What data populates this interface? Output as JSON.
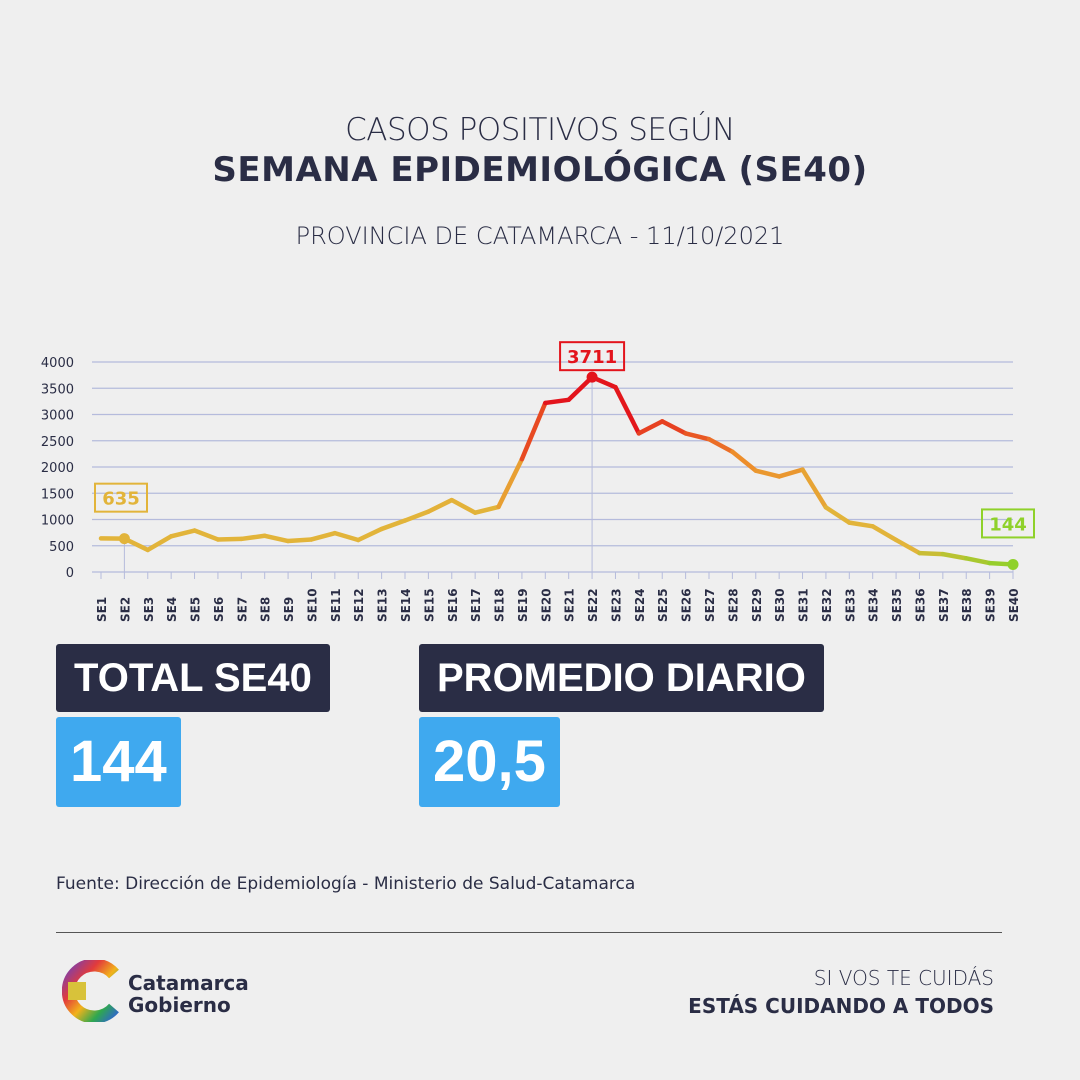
{
  "header": {
    "line1": "CASOS POSITIVOS SEGÚN",
    "line2": "SEMANA EPIDEMIOLÓGICA (SE40)",
    "subtitle": "PROVINCIA DE CATAMARCA - 11/10/2021"
  },
  "chart_data": {
    "type": "line",
    "categories": [
      "SE1",
      "SE2",
      "SE3",
      "SE4",
      "SE5",
      "SE6",
      "SE7",
      "SE8",
      "SE9",
      "SE10",
      "SE11",
      "SE12",
      "SE13",
      "SE14",
      "SE15",
      "SE16",
      "SE17",
      "SE18",
      "SE19",
      "SE20",
      "SE21",
      "SE22",
      "SE23",
      "SE24",
      "SE25",
      "SE26",
      "SE27",
      "SE28",
      "SE29",
      "SE30",
      "SE31",
      "SE32",
      "SE33",
      "SE34",
      "SE35",
      "SE36",
      "SE37",
      "SE38",
      "SE39",
      "SE40"
    ],
    "values": [
      640,
      635,
      420,
      680,
      790,
      620,
      630,
      690,
      590,
      620,
      740,
      610,
      820,
      980,
      1150,
      1370,
      1130,
      1240,
      2150,
      3220,
      3280,
      3711,
      3520,
      2640,
      2870,
      2640,
      2530,
      2290,
      1930,
      1820,
      1950,
      1230,
      940,
      870,
      610,
      360,
      340,
      260,
      170,
      144
    ],
    "yticks": [
      0,
      500,
      1000,
      1500,
      2000,
      2500,
      3000,
      3500,
      4000
    ],
    "ylim": [
      0,
      4000
    ],
    "grid": true,
    "annotations": [
      {
        "x": "SE2",
        "label": "635",
        "color": "#e2b43a"
      },
      {
        "x": "SE22",
        "label": "3711",
        "color": "#e3141c"
      },
      {
        "x": "SE40",
        "label": "144",
        "color": "#8fd12a"
      }
    ],
    "colors": {
      "low": "#e2b43a",
      "mid": "#ee8a2a",
      "high": "#e3141c",
      "end": "#8fd12a"
    }
  },
  "stats": {
    "total_label": "TOTAL SE40",
    "total_value": "144",
    "avg_label": "PROMEDIO DIARIO",
    "avg_value": "20,5"
  },
  "footer": {
    "source": "Fuente: Dirección de Epidemiología - Ministerio de Salud-Catamarca",
    "logo_line1": "Catamarca",
    "logo_line2": "Gobierno",
    "slogan1": "SI VOS TE CUIDÁS",
    "slogan2": "ESTÁS CUIDANDO A TODOS"
  }
}
